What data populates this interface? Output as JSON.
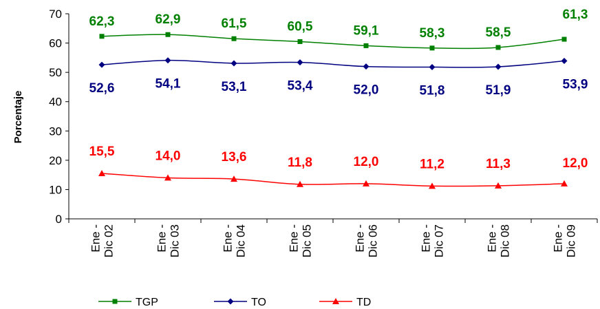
{
  "chart_data": {
    "type": "line",
    "ylabel": "Porcentaje",
    "ylim": [
      0,
      70
    ],
    "yticks": [
      0,
      10,
      20,
      30,
      40,
      50,
      60,
      70
    ],
    "categories": [
      [
        "Ene -",
        "Dic 02"
      ],
      [
        "Ene -",
        "Dic 03"
      ],
      [
        "Ene -",
        "Dic 04"
      ],
      [
        "Ene -",
        "Dic 05"
      ],
      [
        "Ene -",
        "Dic 06"
      ],
      [
        "Ene -",
        "Dic 07"
      ],
      [
        "Ene -",
        "Dic 08"
      ],
      [
        "Ene -",
        "Dic 09"
      ]
    ],
    "grid": false,
    "legend": "bottom",
    "series": [
      {
        "name": "TGP",
        "color": "#008000",
        "marker": "square",
        "values": [
          62.3,
          62.9,
          61.5,
          60.5,
          59.1,
          58.3,
          58.5,
          61.3
        ],
        "labels": [
          "62,3",
          "62,9",
          "61,5",
          "60,5",
          "59,1",
          "58,3",
          "58,5",
          "61,3"
        ]
      },
      {
        "name": "TO",
        "color": "#000080",
        "marker": "diamond",
        "values": [
          52.6,
          54.1,
          53.1,
          53.4,
          52.0,
          51.8,
          51.9,
          53.9
        ],
        "labels": [
          "52,6",
          "54,1",
          "53,1",
          "53,4",
          "52,0",
          "51,8",
          "51,9",
          "53,9"
        ]
      },
      {
        "name": "TD",
        "color": "#ff0000",
        "marker": "triangle",
        "values": [
          15.5,
          14.0,
          13.6,
          11.8,
          12.0,
          11.2,
          11.3,
          12.0
        ],
        "labels": [
          "15,5",
          "14,0",
          "13,6",
          "11,8",
          "12,0",
          "11,2",
          "11,3",
          "12,0"
        ]
      }
    ]
  }
}
